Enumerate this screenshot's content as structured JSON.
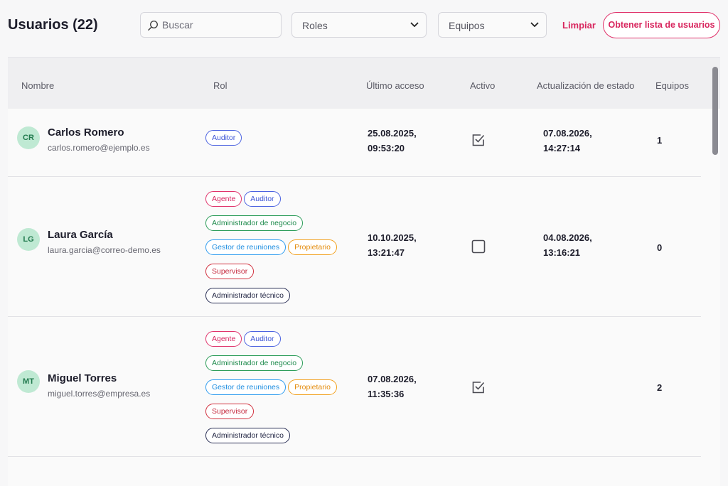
{
  "header": {
    "title": "Usuarios (22)",
    "search_placeholder": "Buscar",
    "roles_label": "Roles",
    "teams_label": "Equipos",
    "clear_label": "Limpiar",
    "get_list_label": "Obtener lista de usuarios"
  },
  "table": {
    "columns": [
      "Nombre",
      "Rol",
      "Último acceso",
      "Activo",
      "Actualización de estado",
      "Equipos"
    ],
    "rows": [
      {
        "initials": "CR",
        "name": "Carlos Romero",
        "email": "carlos.romero@ejemplo.es",
        "roles": [
          "Auditor"
        ],
        "last_access_date": "25.08.2025,",
        "last_access_time": "09:53:20",
        "active": true,
        "status_update_date": "07.08.2026,",
        "status_update_time": "14:27:14",
        "teams": "1"
      },
      {
        "initials": "LG",
        "name": "Laura García",
        "email": "laura.garcia@correo-demo.es",
        "roles": [
          "Agente",
          "Auditor",
          "Administrador de negocio",
          "Gestor de reuniones",
          "Propietario",
          "Supervisor",
          "Administrador técnico"
        ],
        "last_access_date": "10.10.2025,",
        "last_access_time": "13:21:47",
        "active": false,
        "status_update_date": "04.08.2026,",
        "status_update_time": "13:16:21",
        "teams": "0"
      },
      {
        "initials": "MT",
        "name": "Miguel Torres",
        "email": "miguel.torres@empresa.es",
        "roles": [
          "Agente",
          "Auditor",
          "Administrador de negocio",
          "Gestor de reuniones",
          "Propietario",
          "Supervisor",
          "Administrador técnico"
        ],
        "last_access_date": "07.08.2026,",
        "last_access_time": "11:35:36",
        "active": true,
        "status_update_date": "",
        "status_update_time": "",
        "teams": "2"
      }
    ]
  },
  "colors": {
    "accent": "#d8265e",
    "avatar_bg": "#bfe9d3",
    "tag_auditor": "#4b62e0",
    "tag_agente": "#e0336b",
    "tag_admin_negocio": "#2d9d5a",
    "tag_gestor": "#2f9cef",
    "tag_propietario": "#f2a11f",
    "tag_supervisor": "#d1313f",
    "tag_admin_tecnico": "#2a2f55"
  },
  "icons": {
    "search": "search-icon",
    "dropdown": "chevron-down-icon",
    "checkbox_checked": "checkbox-checked-icon",
    "checkbox_empty": "checkbox-empty-icon"
  }
}
